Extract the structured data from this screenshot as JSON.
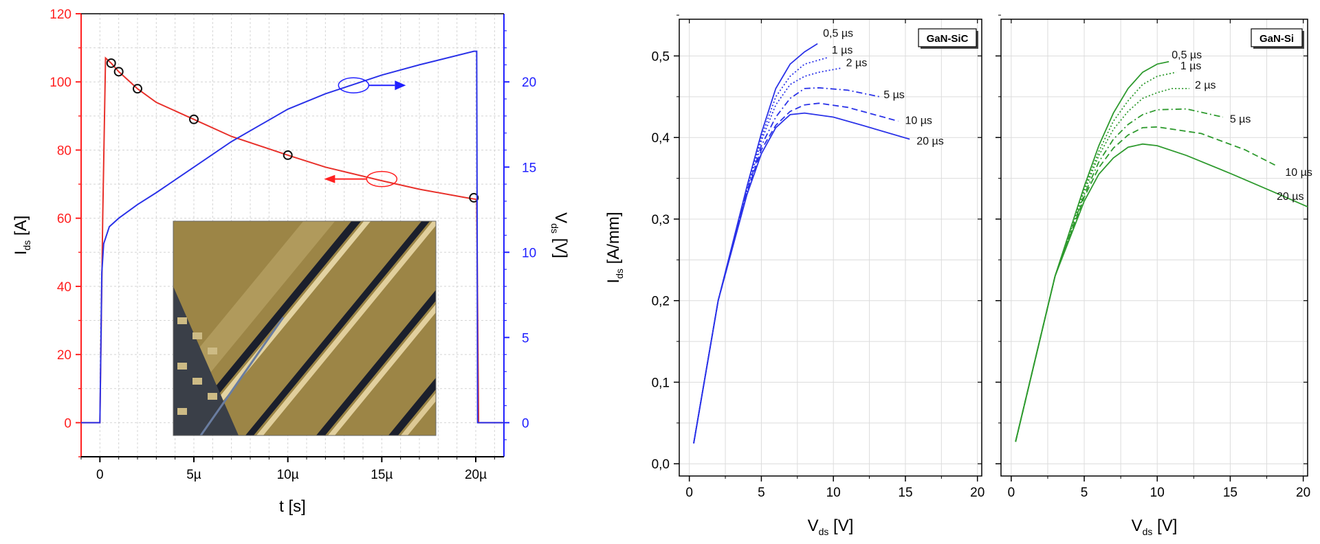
{
  "chart_data": [
    {
      "type": "line",
      "xlabel": "t [s]",
      "ylabel": "I_ds [A]",
      "y2label": "V_ds [V]",
      "xlim": [
        -1e-06,
        2.15e-05
      ],
      "ylim": [
        -10,
        120
      ],
      "y2lim": [
        -2,
        24
      ],
      "xticks": [
        {
          "value": 0,
          "label": "0"
        },
        {
          "value": 5e-06,
          "label": "5µ"
        },
        {
          "value": 1e-05,
          "label": "10µ"
        },
        {
          "value": 1.5e-05,
          "label": "15µ"
        },
        {
          "value": 2e-05,
          "label": "20µ"
        }
      ],
      "yticks": [
        "0",
        "20",
        "40",
        "60",
        "80",
        "100",
        "120"
      ],
      "y2ticks": [
        "0",
        "5",
        "10",
        "15",
        "20"
      ],
      "grid": true,
      "colors": {
        "left_axis": "#ff2020",
        "right_axis": "#2020ff"
      },
      "series": [
        {
          "axis": "left",
          "color": "#e8302a",
          "x": [
            -1e-06,
            0,
            1.5e-07,
            3e-07,
            6e-07,
            1e-06,
            2e-06,
            3e-06,
            5e-06,
            7e-06,
            1e-05,
            1.2e-05,
            1.5e-05,
            1.7e-05,
            1.95e-05,
            2.005e-05,
            2.015e-05,
            2.04e-05,
            2.15e-05
          ],
          "y": [
            0,
            0,
            60,
            107,
            105.5,
            103,
            98,
            94,
            89,
            84,
            78.5,
            75,
            71,
            68.5,
            66,
            65.5,
            0,
            0,
            0
          ],
          "markers_x": [
            6e-07,
            1e-06,
            2e-06,
            5e-06,
            1e-05,
            1.99e-05
          ],
          "markers_y": [
            105.5,
            103,
            98,
            89,
            78.5,
            66
          ]
        },
        {
          "axis": "right",
          "color": "#2a32e8",
          "x": [
            -1e-06,
            0,
            1e-07,
            2e-07,
            5e-07,
            1e-06,
            2e-06,
            3e-06,
            5e-06,
            7e-06,
            1e-05,
            1.2e-05,
            1.5e-05,
            1.7e-05,
            1.99e-05,
            2.005e-05,
            2.01e-05,
            2.03e-05,
            2.15e-05
          ],
          "y": [
            0,
            0,
            8.8,
            10.5,
            11.5,
            12,
            12.8,
            13.5,
            15,
            16.5,
            18.4,
            19.3,
            20.4,
            21,
            21.8,
            21.8,
            0,
            0,
            0
          ]
        }
      ],
      "annotations": {
        "red_ellipse": {
          "x": 1.5e-05,
          "y": 71.5,
          "arrow": "left"
        },
        "blue_ellipse": {
          "x": 1.35e-05,
          "y": 19.8,
          "arrow": "right"
        }
      },
      "inset": "micrograph of transistor layout"
    },
    {
      "type": "line",
      "label": "GaN-SiC",
      "xlabel": "V_ds [V]",
      "ylabel": "I_ds [A/mm]",
      "xlim": [
        -0.7,
        20.3
      ],
      "ylim": [
        -0.015,
        0.545
      ],
      "xticks": [
        "0",
        "5",
        "10",
        "15",
        "20"
      ],
      "yticks": [
        "0,0",
        "0,1",
        "0,2",
        "0,3",
        "0,4",
        "0,5"
      ],
      "grid": true,
      "color": "#2a32e8",
      "series": [
        {
          "name": "0,5 µs",
          "dash": "solid",
          "x": [
            0.3,
            2,
            4,
            5,
            6,
            7,
            8,
            8.9
          ],
          "y": [
            0.025,
            0.2,
            0.34,
            0.405,
            0.46,
            0.49,
            0.505,
            0.515
          ]
        },
        {
          "name": "1 µs",
          "dash": "dot",
          "x": [
            0.3,
            2,
            4,
            5,
            6,
            7,
            8,
            9,
            9.6
          ],
          "y": [
            0.025,
            0.2,
            0.338,
            0.4,
            0.45,
            0.475,
            0.49,
            0.495,
            0.498
          ]
        },
        {
          "name": "2 µs",
          "dash": "dot",
          "x": [
            0.3,
            2,
            4,
            5,
            6,
            7,
            8,
            9,
            10.5
          ],
          "y": [
            0.025,
            0.2,
            0.336,
            0.396,
            0.44,
            0.465,
            0.475,
            0.48,
            0.485
          ]
        },
        {
          "name": "5 µs",
          "dash": "dashdot",
          "x": [
            0.3,
            2,
            4,
            5,
            6,
            7,
            8,
            9,
            11,
            13.2
          ],
          "y": [
            0.025,
            0.2,
            0.334,
            0.39,
            0.425,
            0.448,
            0.46,
            0.461,
            0.458,
            0.45
          ]
        },
        {
          "name": "10 µs",
          "dash": "dash",
          "x": [
            0.3,
            2,
            4,
            5,
            6,
            7,
            8,
            9,
            11,
            14.5
          ],
          "y": [
            0.025,
            0.2,
            0.332,
            0.385,
            0.415,
            0.432,
            0.44,
            0.442,
            0.437,
            0.42
          ]
        },
        {
          "name": "20 µs",
          "dash": "solid",
          "x": [
            0.3,
            2,
            4,
            5,
            6,
            7,
            8,
            10,
            12,
            15.3
          ],
          "y": [
            0.025,
            0.2,
            0.33,
            0.38,
            0.412,
            0.428,
            0.43,
            0.425,
            0.415,
            0.398
          ]
        }
      ]
    },
    {
      "type": "line",
      "label": "GaN-Si",
      "xlabel": "V_ds [V]",
      "xlim": [
        -0.7,
        20.3
      ],
      "ylim": [
        -0.015,
        0.545
      ],
      "xticks": [
        "0",
        "5",
        "10",
        "15",
        "20"
      ],
      "grid": true,
      "color": "#2e9a2e",
      "series": [
        {
          "name": "0,5 µs",
          "dash": "solid",
          "x": [
            0.3,
            3,
            5,
            6,
            7,
            8,
            9,
            10,
            10.8
          ],
          "y": [
            0.027,
            0.23,
            0.34,
            0.39,
            0.43,
            0.46,
            0.48,
            0.49,
            0.493
          ]
        },
        {
          "name": "1 µs",
          "dash": "dot",
          "x": [
            0.3,
            3,
            5,
            6,
            7,
            8,
            9,
            10,
            11.3
          ],
          "y": [
            0.027,
            0.23,
            0.337,
            0.383,
            0.42,
            0.445,
            0.465,
            0.475,
            0.48
          ]
        },
        {
          "name": "2 µs",
          "dash": "dot",
          "x": [
            0.3,
            3,
            5,
            6,
            7,
            8,
            9,
            10,
            11,
            12.2
          ],
          "y": [
            0.027,
            0.23,
            0.334,
            0.378,
            0.41,
            0.432,
            0.448,
            0.455,
            0.46,
            0.46
          ]
        },
        {
          "name": "5 µs",
          "dash": "dashdot",
          "x": [
            0.3,
            3,
            5,
            6,
            7,
            8,
            9,
            10,
            12,
            14.5
          ],
          "y": [
            0.027,
            0.23,
            0.33,
            0.37,
            0.398,
            0.416,
            0.428,
            0.434,
            0.435,
            0.425
          ]
        },
        {
          "name": "10 µs",
          "dash": "dash",
          "x": [
            0.3,
            3,
            5,
            6,
            7,
            8,
            9,
            10,
            13,
            16,
            18.2
          ],
          "y": [
            0.027,
            0.23,
            0.327,
            0.363,
            0.387,
            0.403,
            0.412,
            0.413,
            0.405,
            0.385,
            0.365
          ]
        },
        {
          "name": "20 µs",
          "dash": "solid",
          "x": [
            0.3,
            3,
            5,
            6,
            7,
            8,
            9,
            10,
            12,
            15,
            18,
            20.3
          ],
          "y": [
            0.027,
            0.23,
            0.322,
            0.355,
            0.375,
            0.388,
            0.392,
            0.39,
            0.378,
            0.356,
            0.333,
            0.315
          ]
        }
      ]
    }
  ]
}
